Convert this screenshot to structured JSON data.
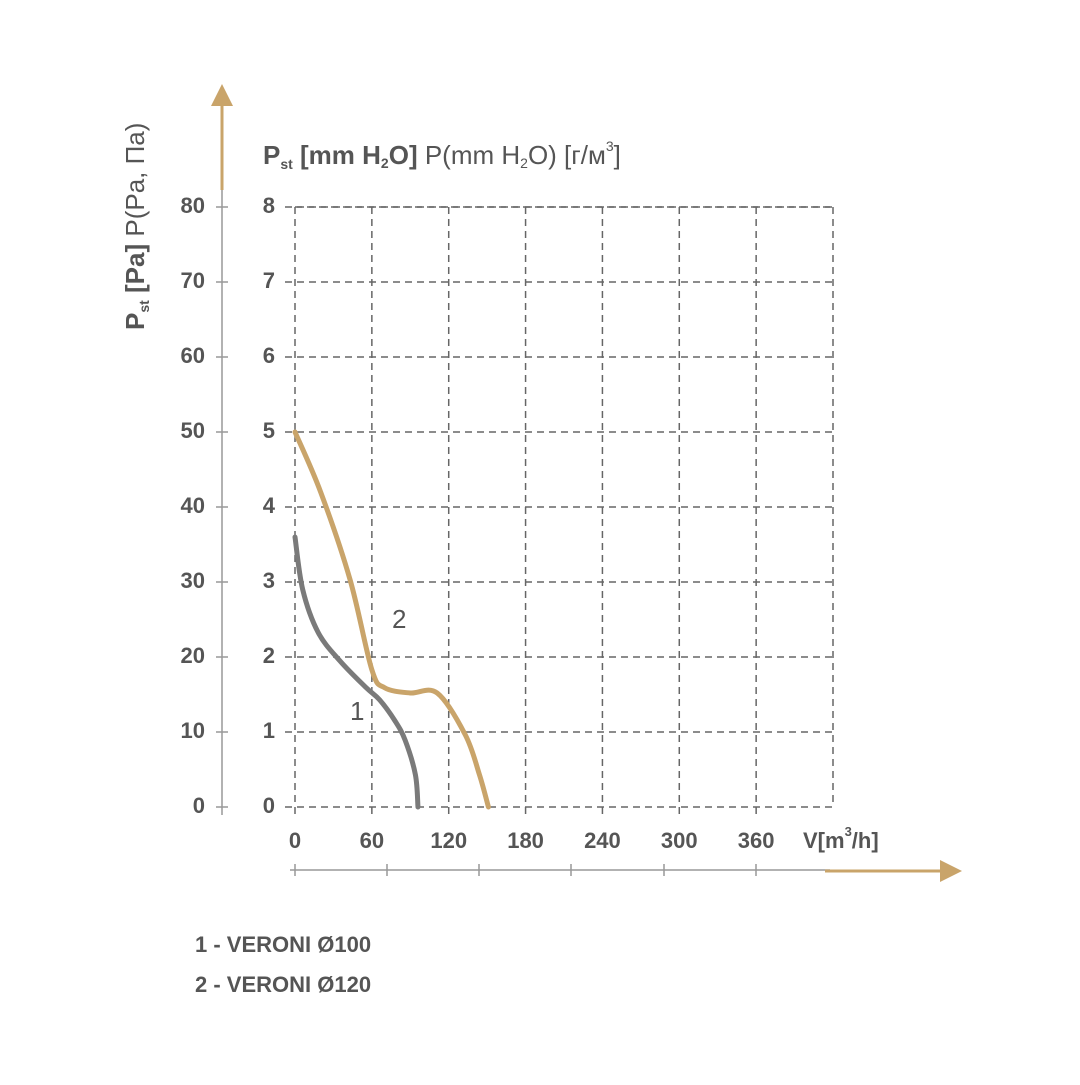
{
  "chart_data": {
    "type": "line",
    "y_label": [
      "P",
      "st",
      " [Pa]",
      " P(Pa, Па)"
    ],
    "y2_label": [
      "P",
      "st",
      " [mm H",
      "2",
      "O]",
      " P(mm H",
      "2",
      "O) [г/м",
      "3",
      "]"
    ],
    "x_label": [
      "V[m",
      "3",
      "/h]"
    ],
    "xlim": [
      0,
      420
    ],
    "xticks": [
      0,
      60,
      120,
      180,
      240,
      300,
      360
    ],
    "ylim": [
      0,
      80
    ],
    "yticks": [
      0,
      10,
      20,
      30,
      40,
      50,
      60,
      70,
      80
    ],
    "y2lim": [
      0,
      8
    ],
    "y2ticks": [
      0,
      1,
      2,
      3,
      4,
      5,
      6,
      7,
      8
    ],
    "grid": true,
    "series": [
      {
        "name": "1 - VERONI Ø100",
        "label": "1",
        "color": "#7a7a7a",
        "x": [
          0,
          6,
          18,
          35,
          55,
          66,
          78,
          86,
          94,
          96
        ],
        "values": [
          36,
          29,
          23.3,
          19.5,
          16,
          14.3,
          11.5,
          8.9,
          4.3,
          0
        ]
      },
      {
        "name": "2 - VERONI Ø120",
        "label": "2",
        "color": "#c9a46a",
        "x": [
          0,
          20,
          43,
          60,
          70,
          90,
          111,
          133,
          144,
          151
        ],
        "values": [
          50,
          42,
          30.3,
          18.3,
          15.9,
          15.2,
          15.2,
          9.6,
          4.3,
          0
        ]
      }
    ]
  }
}
